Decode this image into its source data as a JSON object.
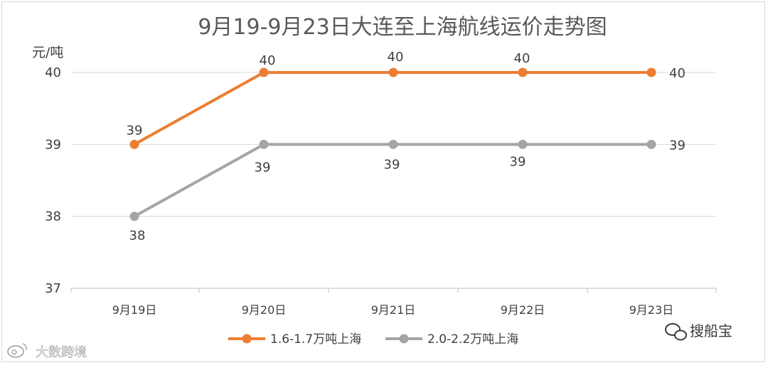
{
  "chart_data": {
    "type": "line",
    "title": "9月19-9月23日大连至上海航线运价走势图",
    "ylabel": "元/吨",
    "xlabel": "",
    "categories": [
      "9月19日",
      "9月20日",
      "9月21日",
      "9月22日",
      "9月23日"
    ],
    "ylim": [
      37,
      40
    ],
    "yticks": [
      37,
      38,
      39,
      40
    ],
    "grid": true,
    "legend_position": "bottom",
    "series": [
      {
        "name": "1.6-1.7万吨上海",
        "values": [
          39,
          40,
          40,
          40,
          40
        ],
        "color": "#ED7D31"
      },
      {
        "name": "2.0-2.2万吨上海",
        "values": [
          38,
          39,
          39,
          39,
          39
        ],
        "color": "#A5A5A5"
      }
    ]
  },
  "watermarks": {
    "right": "搜船宝",
    "left": "大数跨境",
    "right_icon": "wechat-icon",
    "left_icon": "weibo-icon"
  }
}
